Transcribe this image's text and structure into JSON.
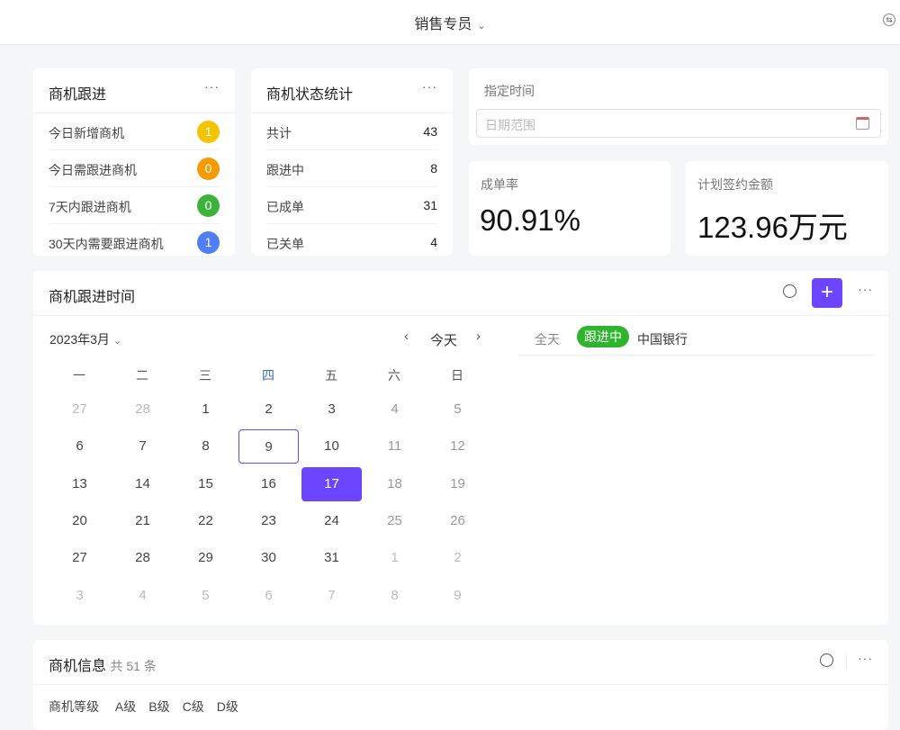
{
  "header": {
    "title": "销售专员",
    "switch_icon": "switch-icon"
  },
  "follow": {
    "title": "商机跟进",
    "items": [
      {
        "label": "今日新增商机",
        "count": "1",
        "color": "#f5c400"
      },
      {
        "label": "今日需跟进商机",
        "count": "0",
        "color": "#f59a00"
      },
      {
        "label": "7天内跟进商机",
        "count": "0",
        "color": "#3bb33b"
      },
      {
        "label": "30天内需要跟进商机",
        "count": "1",
        "color": "#4f7ef7"
      }
    ]
  },
  "status": {
    "title": "商机状态统计",
    "items": [
      {
        "label": "共计",
        "value": "43"
      },
      {
        "label": "跟进中",
        "value": "8"
      },
      {
        "label": "已成单",
        "value": "31"
      },
      {
        "label": "已关单",
        "value": "4"
      }
    ]
  },
  "time": {
    "label": "指定时间",
    "placeholder": "日期范围"
  },
  "rate": {
    "label": "成单率",
    "value": "90.91%"
  },
  "amount": {
    "label": "计划签约金额",
    "value": "123.96万元"
  },
  "calendar": {
    "title": "商机跟进时间",
    "month": "2023年3月",
    "today": "今天",
    "weekdays": [
      "一",
      "二",
      "三",
      "四",
      "五",
      "六",
      "日"
    ],
    "weeks": [
      [
        "27",
        "28",
        "1",
        "2",
        "3",
        "4",
        "5"
      ],
      [
        "6",
        "7",
        "8",
        "9",
        "10",
        "11",
        "12"
      ],
      [
        "13",
        "14",
        "15",
        "16",
        "17",
        "18",
        "19"
      ],
      [
        "20",
        "21",
        "22",
        "23",
        "24",
        "25",
        "26"
      ],
      [
        "27",
        "28",
        "29",
        "30",
        "31",
        "1",
        "2"
      ],
      [
        "3",
        "4",
        "5",
        "6",
        "7",
        "8",
        "9"
      ]
    ],
    "selected": "17",
    "today_date": "9",
    "event": {
      "allday": "全天",
      "tag": "跟进中",
      "name": "中国银行",
      "tag_color": "#2db52d"
    },
    "accent": "#6b45ff"
  },
  "info": {
    "title": "商机信息",
    "count": "共 51 条",
    "filter_label": "商机等级",
    "levels": [
      "A级",
      "B级",
      "C级",
      "D级"
    ]
  }
}
